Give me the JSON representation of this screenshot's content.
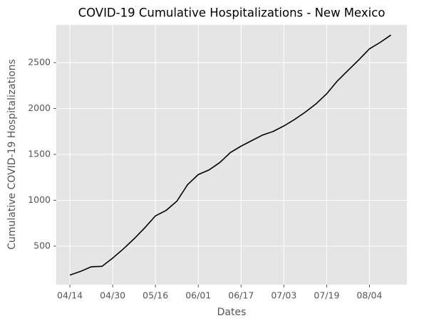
{
  "chart_data": {
    "type": "line",
    "title": "COVID-19 Cumulative Hospitalizations - New Mexico",
    "xlabel": "Dates",
    "ylabel": "Cumulative COVID-19 Hospitalizations",
    "categories": [
      "04/14",
      null,
      null,
      null,
      "04/30",
      null,
      null,
      null,
      "05/16",
      null,
      null,
      null,
      "06/01",
      null,
      null,
      null,
      "06/17",
      null,
      null,
      null,
      "07/03",
      null,
      null,
      null,
      "07/19",
      null,
      null,
      null,
      "08/04",
      null,
      null
    ],
    "series": [
      {
        "name": "Cumulative Hospitalizations",
        "color": "#000000",
        "values": [
          185,
          225,
          275,
          280,
          370,
          470,
          580,
          700,
          830,
          890,
          990,
          1170,
          1280,
          1330,
          1410,
          1520,
          1590,
          1650,
          1710,
          1750,
          1810,
          1880,
          1960,
          2050,
          2160,
          2300,
          2415,
          2530,
          2650,
          2720,
          2800
        ]
      }
    ],
    "ylim": [
      81,
      2911
    ],
    "yticks": [
      500,
      1000,
      1500,
      2000,
      2500
    ],
    "grid": true
  }
}
